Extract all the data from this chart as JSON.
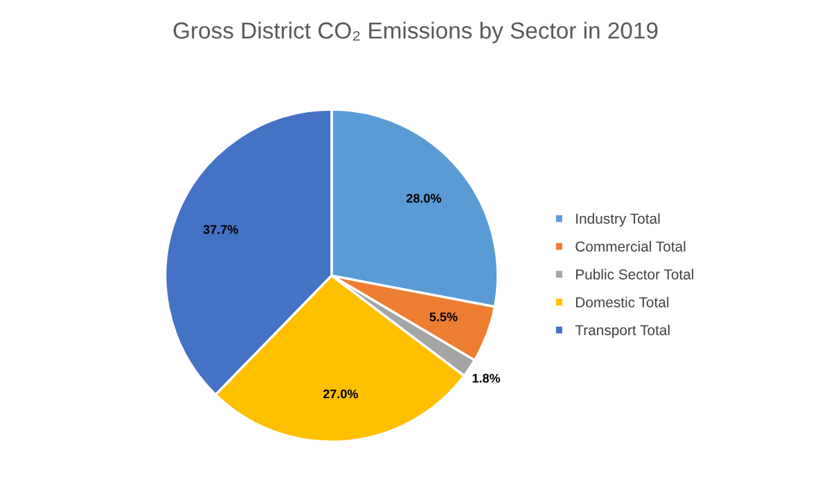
{
  "chart_data": {
    "type": "pie",
    "title": "Gross District CO₂ Emissions by Sector in 2019",
    "categories": [
      "Industry Total",
      "Commercial Total",
      "Public Sector Total",
      "Domestic Total",
      "Transport Total"
    ],
    "values": [
      28.0,
      5.5,
      1.8,
      27.0,
      37.7
    ],
    "value_labels": [
      "28.0%",
      "5.5%",
      "1.8%",
      "27.0%",
      "37.7%"
    ],
    "colors": [
      "#5b9bd5",
      "#ed7d31",
      "#a5a5a5",
      "#ffc000",
      "#4472c4"
    ],
    "legend": "right"
  }
}
